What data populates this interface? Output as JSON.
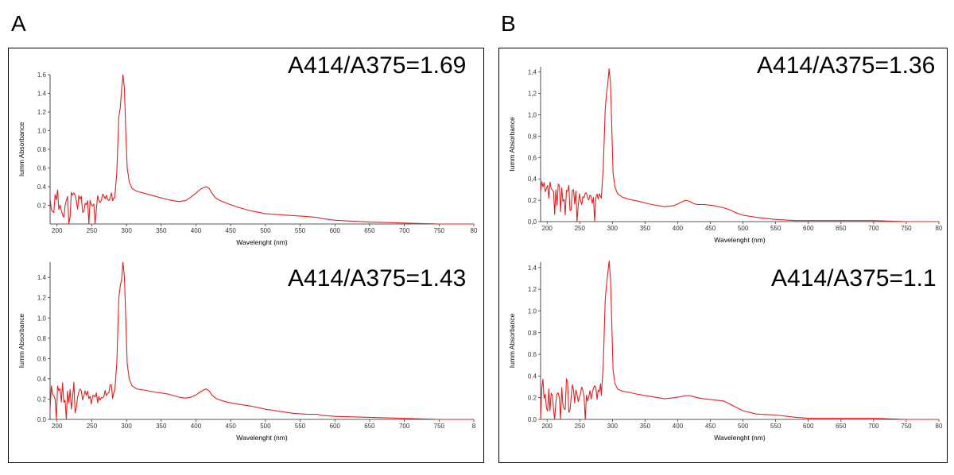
{
  "panels": [
    {
      "label": "A"
    },
    {
      "label": "B"
    }
  ],
  "chart_data": [
    {
      "type": "line",
      "panel": "A",
      "position": "top",
      "title": "",
      "annotation": "A414/A375=1.69",
      "xlabel": "Wavelenght (nm)",
      "ylabel": "Iumm Absorbance",
      "xlim": [
        190,
        800
      ],
      "ylim": [
        0,
        1.6
      ],
      "xticks": [
        "200",
        "250",
        "300",
        "350",
        "400",
        "450",
        "500",
        "550",
        "600",
        "650",
        "700",
        "750",
        "80"
      ],
      "yticks": [
        "0.2",
        "0.4",
        "0.6",
        "0.8",
        "1.0",
        "1.2",
        "1.4",
        "1.6"
      ],
      "ytick_values": [
        0.2,
        0.4,
        0.6,
        0.8,
        1.0,
        1.2,
        1.4,
        1.6
      ],
      "series": [
        {
          "color": "#e02020",
          "x": [
            283,
            286,
            289,
            291,
            293,
            295,
            297,
            299,
            301,
            304,
            308,
            315,
            325,
            340,
            360,
            375,
            385,
            393,
            400,
            406,
            411,
            415,
            419,
            423,
            428,
            435,
            445,
            460,
            480,
            500,
            520,
            540,
            560,
            575,
            580,
            600,
            650,
            700,
            750
          ],
          "y": [
            0.28,
            0.55,
            1.15,
            1.25,
            1.45,
            1.6,
            1.45,
            1.0,
            0.6,
            0.45,
            0.38,
            0.35,
            0.33,
            0.3,
            0.26,
            0.24,
            0.25,
            0.29,
            0.33,
            0.37,
            0.39,
            0.4,
            0.38,
            0.33,
            0.28,
            0.25,
            0.22,
            0.18,
            0.14,
            0.11,
            0.1,
            0.09,
            0.08,
            0.07,
            0.06,
            0.04,
            0.02,
            0.01,
            0.0
          ]
        }
      ]
    },
    {
      "type": "line",
      "panel": "A",
      "position": "bottom",
      "title": "",
      "annotation": "A414/A375=1.43",
      "xlabel": "Wavelenght (nm)",
      "ylabel": "Iumm Absorbance",
      "xlim": [
        190,
        800
      ],
      "ylim": [
        0,
        1.55
      ],
      "xticks": [
        "200",
        "250",
        "300",
        "350",
        "400",
        "450",
        "500",
        "550",
        "600",
        "650",
        "700",
        "750",
        "8"
      ],
      "yticks": [
        "0.0",
        "0.2",
        "0.4",
        "0.6",
        "0.8",
        "1.0",
        "1.2",
        "1.4"
      ],
      "ytick_values": [
        0,
        0.2,
        0.4,
        0.6,
        0.8,
        1.0,
        1.2,
        1.4
      ],
      "series": [
        {
          "color": "#e02020",
          "x": [
            283,
            286,
            289,
            291,
            293,
            295,
            297,
            299,
            301,
            304,
            308,
            315,
            325,
            340,
            360,
            375,
            385,
            393,
            400,
            406,
            411,
            415,
            419,
            423,
            428,
            435,
            445,
            460,
            480,
            500,
            520,
            540,
            560,
            575,
            580,
            600,
            650,
            700,
            750
          ],
          "y": [
            0.28,
            0.55,
            1.2,
            1.32,
            1.38,
            1.55,
            1.4,
            1.0,
            0.55,
            0.4,
            0.33,
            0.3,
            0.29,
            0.27,
            0.25,
            0.22,
            0.21,
            0.22,
            0.24,
            0.27,
            0.29,
            0.3,
            0.28,
            0.24,
            0.21,
            0.19,
            0.17,
            0.15,
            0.13,
            0.1,
            0.08,
            0.06,
            0.05,
            0.05,
            0.04,
            0.03,
            0.02,
            0.01,
            0.0
          ]
        }
      ]
    },
    {
      "type": "line",
      "panel": "B",
      "position": "top",
      "title": "",
      "annotation": "A414/A375=1.36",
      "xlabel": "Wavelenght (nm)",
      "ylabel": "Iumm Absorbance",
      "xlim": [
        190,
        800
      ],
      "ylim": [
        0,
        1.45
      ],
      "xticks": [
        "200",
        "250",
        "300",
        "350",
        "400",
        "450",
        "500",
        "550",
        "600",
        "650",
        "700",
        "750",
        "80"
      ],
      "yticks": [
        "0,0",
        "0,2",
        "0,4",
        "0,6",
        "0,8",
        "1,0",
        "1,2",
        "1,4"
      ],
      "ytick_values": [
        0,
        0.2,
        0.4,
        0.6,
        0.8,
        1.0,
        1.2,
        1.4
      ],
      "series": [
        {
          "color": "#e02020",
          "x": [
            283,
            286,
            289,
            291,
            293,
            295,
            297,
            299,
            301,
            304,
            308,
            315,
            325,
            340,
            360,
            380,
            395,
            405,
            412,
            418,
            424,
            430,
            440,
            455,
            470,
            480,
            490,
            500,
            520,
            550,
            580,
            600,
            650,
            700,
            750,
            800
          ],
          "y": [
            0.22,
            0.5,
            1.05,
            1.2,
            1.3,
            1.43,
            1.3,
            0.9,
            0.45,
            0.32,
            0.26,
            0.23,
            0.21,
            0.19,
            0.16,
            0.14,
            0.15,
            0.18,
            0.2,
            0.19,
            0.17,
            0.16,
            0.16,
            0.15,
            0.13,
            0.11,
            0.08,
            0.06,
            0.04,
            0.02,
            0.01,
            0.01,
            0.01,
            0.01,
            0.0,
            0.0
          ]
        }
      ]
    },
    {
      "type": "line",
      "panel": "B",
      "position": "bottom",
      "title": "",
      "annotation": "A414/A375=1.1",
      "xlabel": "Wavelenght (nm)",
      "ylabel": "Iumm Absorbance",
      "xlim": [
        190,
        800
      ],
      "ylim": [
        0,
        1.45
      ],
      "xticks": [
        "200",
        "250",
        "300",
        "350",
        "400",
        "450",
        "500",
        "550",
        "600",
        "650",
        "700",
        "750",
        "80"
      ],
      "yticks": [
        "0.0",
        "0.2",
        "0.4",
        "0.6",
        "0.8",
        "1.0",
        "1.2",
        "1.4"
      ],
      "ytick_values": [
        0,
        0.2,
        0.4,
        0.6,
        0.8,
        1.0,
        1.2,
        1.4
      ],
      "series": [
        {
          "color": "#e02020",
          "x": [
            283,
            286,
            289,
            291,
            293,
            295,
            297,
            299,
            301,
            304,
            308,
            315,
            325,
            340,
            360,
            380,
            395,
            405,
            412,
            418,
            424,
            430,
            440,
            455,
            470,
            480,
            490,
            500,
            520,
            550,
            580,
            600,
            650,
            700,
            750,
            800
          ],
          "y": [
            0.22,
            0.5,
            1.1,
            1.25,
            1.35,
            1.46,
            1.3,
            0.9,
            0.45,
            0.33,
            0.28,
            0.26,
            0.25,
            0.23,
            0.21,
            0.19,
            0.2,
            0.21,
            0.22,
            0.22,
            0.21,
            0.2,
            0.19,
            0.18,
            0.17,
            0.14,
            0.11,
            0.08,
            0.05,
            0.04,
            0.02,
            0.01,
            0.01,
            0.01,
            0.0,
            0.0
          ]
        }
      ]
    }
  ]
}
